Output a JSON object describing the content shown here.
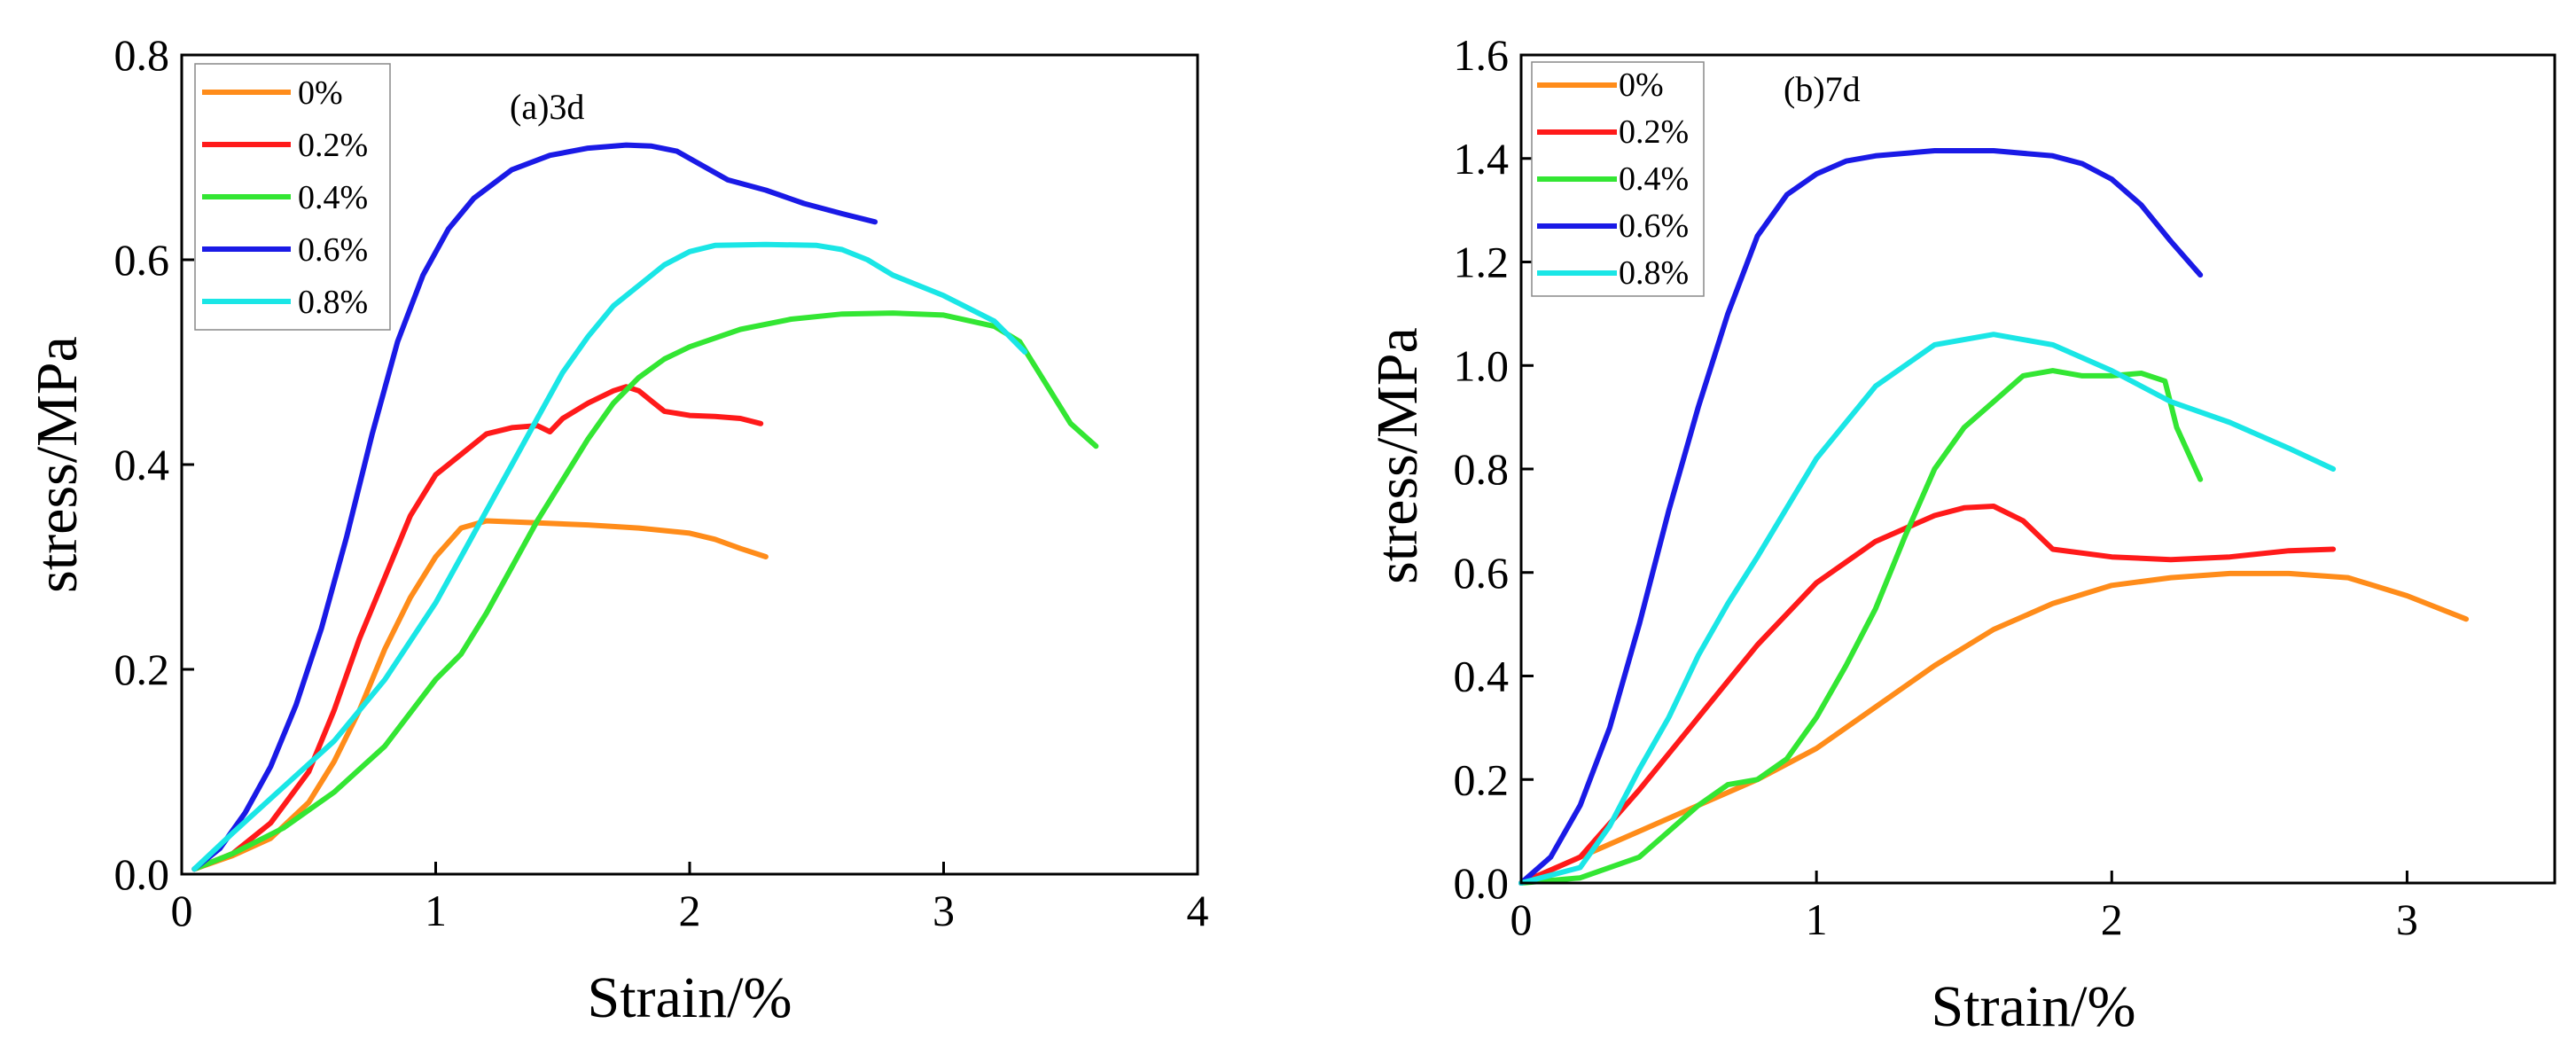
{
  "colors": {
    "0%": "#FF8C1A",
    "0.2%": "#FF1A1A",
    "0.4%": "#33E633",
    "0.6%": "#1A1AE6",
    "0.8%": "#1AE6E6"
  },
  "chart_data": [
    {
      "type": "line",
      "title": "(a)3d",
      "xlabel": "Strain/%",
      "ylabel": "stress/MPa",
      "xlim": [
        0,
        4
      ],
      "ylim": [
        0,
        0.8
      ],
      "xticks": [
        0,
        1,
        2,
        3,
        4
      ],
      "yticks": [
        0.0,
        0.2,
        0.4,
        0.6,
        0.8
      ],
      "xtick_labels": [
        "0",
        "1",
        "2",
        "3",
        "4"
      ],
      "ytick_labels": [
        "0.0",
        "0.2",
        "0.4",
        "0.6",
        "0.8"
      ],
      "legend_position": "top-left",
      "series": [
        {
          "name": "0%",
          "x": [
            0.05,
            0.2,
            0.35,
            0.5,
            0.6,
            0.7,
            0.8,
            0.9,
            1.0,
            1.1,
            1.2,
            1.4,
            1.6,
            1.8,
            2.0,
            2.1,
            2.2,
            2.3
          ],
          "y": [
            0.005,
            0.018,
            0.035,
            0.07,
            0.11,
            0.16,
            0.22,
            0.27,
            0.31,
            0.338,
            0.345,
            0.343,
            0.341,
            0.338,
            0.333,
            0.327,
            0.318,
            0.31
          ]
        },
        {
          "name": "0.2%",
          "x": [
            0.05,
            0.2,
            0.35,
            0.5,
            0.6,
            0.7,
            0.8,
            0.9,
            1.0,
            1.1,
            1.2,
            1.3,
            1.4,
            1.45,
            1.5,
            1.6,
            1.7,
            1.75,
            1.8,
            1.85,
            1.9,
            2.0,
            2.1,
            2.2,
            2.28
          ],
          "y": [
            0.005,
            0.02,
            0.05,
            0.1,
            0.16,
            0.23,
            0.29,
            0.35,
            0.39,
            0.41,
            0.43,
            0.436,
            0.438,
            0.432,
            0.445,
            0.46,
            0.472,
            0.476,
            0.472,
            0.462,
            0.452,
            0.448,
            0.447,
            0.445,
            0.44
          ]
        },
        {
          "name": "0.4%",
          "x": [
            0.05,
            0.2,
            0.4,
            0.6,
            0.8,
            1.0,
            1.1,
            1.2,
            1.3,
            1.4,
            1.5,
            1.6,
            1.7,
            1.8,
            1.9,
            2.0,
            2.2,
            2.4,
            2.6,
            2.8,
            3.0,
            3.2,
            3.3,
            3.4,
            3.5,
            3.6
          ],
          "y": [
            0.005,
            0.02,
            0.045,
            0.08,
            0.125,
            0.19,
            0.215,
            0.255,
            0.3,
            0.345,
            0.385,
            0.425,
            0.46,
            0.485,
            0.503,
            0.515,
            0.532,
            0.542,
            0.547,
            0.548,
            0.546,
            0.535,
            0.52,
            0.48,
            0.44,
            0.418
          ]
        },
        {
          "name": "0.6%",
          "x": [
            0.05,
            0.15,
            0.25,
            0.35,
            0.45,
            0.55,
            0.65,
            0.75,
            0.85,
            0.95,
            1.05,
            1.15,
            1.3,
            1.45,
            1.6,
            1.75,
            1.85,
            1.95,
            2.05,
            2.15,
            2.3,
            2.45,
            2.6,
            2.73
          ],
          "y": [
            0.005,
            0.025,
            0.06,
            0.105,
            0.165,
            0.24,
            0.33,
            0.43,
            0.52,
            0.585,
            0.63,
            0.66,
            0.688,
            0.702,
            0.709,
            0.712,
            0.711,
            0.706,
            0.692,
            0.678,
            0.668,
            0.655,
            0.645,
            0.637
          ]
        },
        {
          "name": "0.8%",
          "x": [
            0.05,
            0.2,
            0.4,
            0.6,
            0.8,
            1.0,
            1.1,
            1.2,
            1.3,
            1.4,
            1.5,
            1.6,
            1.7,
            1.8,
            1.9,
            2.0,
            2.1,
            2.3,
            2.5,
            2.6,
            2.7,
            2.8,
            3.0,
            3.2,
            3.32
          ],
          "y": [
            0.005,
            0.04,
            0.085,
            0.13,
            0.19,
            0.265,
            0.31,
            0.355,
            0.4,
            0.445,
            0.49,
            0.525,
            0.555,
            0.575,
            0.595,
            0.608,
            0.614,
            0.615,
            0.614,
            0.61,
            0.6,
            0.585,
            0.565,
            0.54,
            0.51
          ]
        }
      ]
    },
    {
      "type": "line",
      "title": "(b)7d",
      "xlabel": "Strain/%",
      "ylabel": "stress/MPa",
      "xlim": [
        0,
        3.5
      ],
      "ylim": [
        0,
        1.6
      ],
      "xticks": [
        0,
        1,
        2,
        3
      ],
      "yticks": [
        0.0,
        0.2,
        0.4,
        0.6,
        0.8,
        1.0,
        1.2,
        1.4,
        1.6
      ],
      "xtick_labels": [
        "0",
        "1",
        "2",
        "3"
      ],
      "ytick_labels": [
        "0.0",
        "0.2",
        "0.4",
        "0.6",
        "0.8",
        "1.0",
        "1.2",
        "1.4",
        "1.6"
      ],
      "legend_position": "top-left",
      "series": [
        {
          "name": "0%",
          "x": [
            0.0,
            0.2,
            0.4,
            0.6,
            0.8,
            1.0,
            1.2,
            1.4,
            1.6,
            1.8,
            2.0,
            2.2,
            2.4,
            2.6,
            2.8,
            3.0,
            3.2
          ],
          "y": [
            0.0,
            0.05,
            0.1,
            0.15,
            0.2,
            0.26,
            0.34,
            0.42,
            0.49,
            0.54,
            0.575,
            0.59,
            0.598,
            0.598,
            0.59,
            0.555,
            0.51
          ]
        },
        {
          "name": "0.2%",
          "x": [
            0.0,
            0.2,
            0.4,
            0.6,
            0.8,
            1.0,
            1.2,
            1.4,
            1.5,
            1.6,
            1.7,
            1.8,
            2.0,
            2.2,
            2.4,
            2.6,
            2.75
          ],
          "y": [
            0.0,
            0.05,
            0.18,
            0.32,
            0.46,
            0.58,
            0.66,
            0.71,
            0.725,
            0.728,
            0.7,
            0.645,
            0.63,
            0.625,
            0.63,
            0.642,
            0.645
          ]
        },
        {
          "name": "0.4%",
          "x": [
            0.0,
            0.2,
            0.4,
            0.5,
            0.6,
            0.7,
            0.8,
            0.9,
            1.0,
            1.1,
            1.2,
            1.3,
            1.4,
            1.5,
            1.6,
            1.7,
            1.8,
            1.9,
            2.0,
            2.1,
            2.18,
            2.22,
            2.26,
            2.3
          ],
          "y": [
            0.0,
            0.01,
            0.05,
            0.1,
            0.15,
            0.19,
            0.2,
            0.24,
            0.32,
            0.42,
            0.53,
            0.67,
            0.8,
            0.88,
            0.93,
            0.98,
            0.99,
            0.98,
            0.98,
            0.985,
            0.97,
            0.88,
            0.83,
            0.78
          ]
        },
        {
          "name": "0.6%",
          "x": [
            0.0,
            0.1,
            0.2,
            0.3,
            0.4,
            0.5,
            0.6,
            0.7,
            0.8,
            0.9,
            1.0,
            1.1,
            1.2,
            1.4,
            1.6,
            1.8,
            1.9,
            2.0,
            2.1,
            2.2,
            2.3
          ],
          "y": [
            0.0,
            0.05,
            0.15,
            0.3,
            0.5,
            0.72,
            0.92,
            1.1,
            1.25,
            1.33,
            1.37,
            1.395,
            1.405,
            1.415,
            1.415,
            1.405,
            1.39,
            1.36,
            1.31,
            1.24,
            1.175
          ]
        },
        {
          "name": "0.8%",
          "x": [
            0.0,
            0.2,
            0.3,
            0.4,
            0.5,
            0.6,
            0.7,
            0.8,
            1.0,
            1.2,
            1.4,
            1.6,
            1.8,
            2.0,
            2.2,
            2.4,
            2.6,
            2.75
          ],
          "y": [
            0.0,
            0.03,
            0.11,
            0.22,
            0.32,
            0.44,
            0.54,
            0.63,
            0.82,
            0.96,
            1.04,
            1.06,
            1.04,
            0.99,
            0.93,
            0.89,
            0.84,
            0.8
          ]
        }
      ]
    }
  ]
}
